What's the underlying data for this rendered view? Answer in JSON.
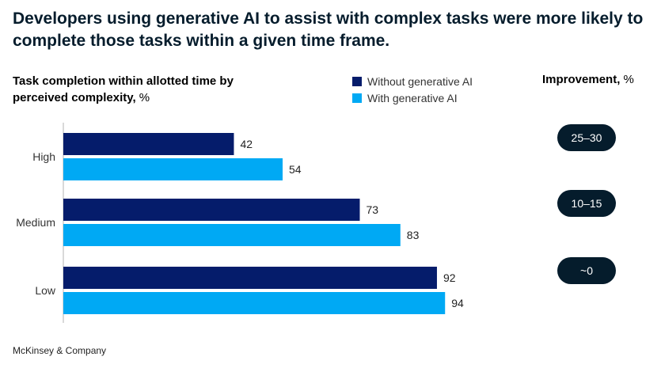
{
  "title": "Developers using generative AI to assist with complex tasks were more likely to complete those tasks within a given time frame.",
  "subtitle": {
    "bold_part": "Task completion within allotted time by perceived complexity,",
    "unit": "%"
  },
  "legend": [
    {
      "label": "Without generative AI",
      "color": "#051c6b"
    },
    {
      "label": "With generative AI",
      "color": "#00a9f4"
    }
  ],
  "improvement": {
    "header_bold": "Improvement,",
    "header_unit": "%",
    "values": [
      "25–30",
      "10–15",
      "~0"
    ]
  },
  "footer": "McKinsey & Company",
  "chart_data": {
    "type": "bar",
    "orientation": "horizontal",
    "categories": [
      "High",
      "Medium",
      "Low"
    ],
    "series": [
      {
        "name": "Without generative AI",
        "values": [
          42,
          73,
          92
        ],
        "color": "#051c6b"
      },
      {
        "name": "With generative AI",
        "values": [
          54,
          83,
          94
        ],
        "color": "#00a9f4"
      }
    ],
    "xlim": [
      0,
      100
    ],
    "grid": false,
    "legend_position": "top"
  }
}
